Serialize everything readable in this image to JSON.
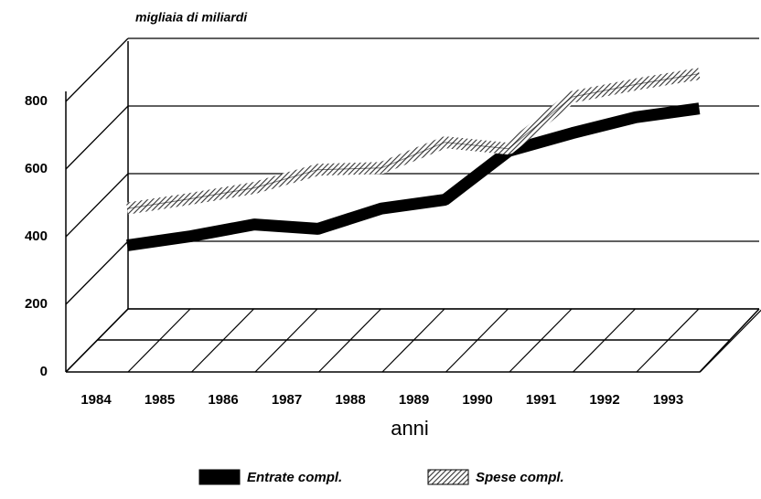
{
  "chart_data": {
    "type": "line",
    "y_axis_label": "migliaia di miliardi",
    "x_axis_label": "anni",
    "categories": [
      "1984",
      "1985",
      "1986",
      "1987",
      "1988",
      "1989",
      "1990",
      "1991",
      "1992",
      "1993"
    ],
    "series": [
      {
        "name": "Entrate compl.",
        "color": "#000000",
        "values": [
          281,
          308,
          343,
          330,
          390,
          416,
          560,
          613,
          660,
          686
        ]
      },
      {
        "name": "Spese compl.",
        "color": "#888888",
        "values": [
          390,
          419,
          451,
          505,
          510,
          586,
          567,
          720,
          757,
          789
        ]
      }
    ],
    "ylim": [
      0,
      800
    ],
    "yticks": [
      0,
      200,
      400,
      600,
      800
    ],
    "grid": true
  }
}
